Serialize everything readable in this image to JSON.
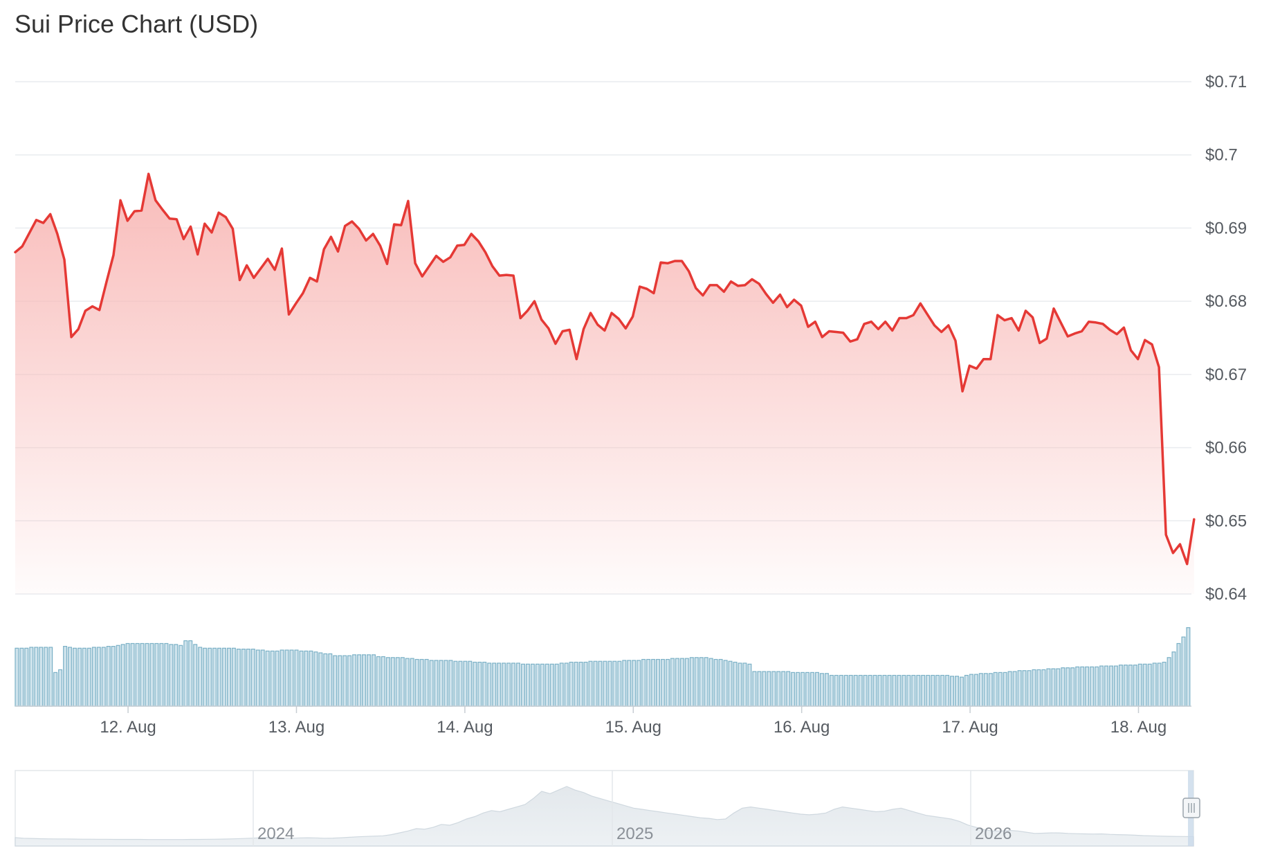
{
  "title": "Sui Price Chart (USD)",
  "colors": {
    "price_line": "#e53935",
    "area_fill": "#f8b8b6",
    "volume_bar_fill": "#cfe3ec",
    "volume_bar_stroke": "#7ab0c6",
    "grid": "#e9ecef",
    "axis_text": "#555a60",
    "navigator_fill": "#e6ebef",
    "navigator_line": "#cfd8df"
  },
  "chart_data": {
    "type": "line",
    "title": "Sui Price Chart (USD)",
    "xlabel": "",
    "ylabel": "",
    "x_tick_labels": [
      "12. Aug",
      "13. Aug",
      "14. Aug",
      "15. Aug",
      "16. Aug",
      "17. Aug",
      "18. Aug"
    ],
    "y_tick_labels": [
      "$0.71",
      "$0.7",
      "$0.69",
      "$0.68",
      "$0.67",
      "$0.66",
      "$0.65",
      "$0.64"
    ],
    "ylim": [
      0.64,
      0.71
    ],
    "xlim_days": [
      0.0,
      7.0
    ],
    "grid": true,
    "legend": "none",
    "series": [
      {
        "values": [
          0.6867,
          0.6875,
          0.6893,
          0.6911,
          0.6907,
          0.6919,
          0.6892,
          0.6857,
          0.6751,
          0.6762,
          0.6787,
          0.6793,
          0.6788,
          0.6826,
          0.6863,
          0.6938,
          0.691,
          0.6923,
          0.6924,
          0.6974,
          0.6938,
          0.6925,
          0.6913,
          0.6912,
          0.6885,
          0.6902,
          0.6864,
          0.6906,
          0.6894,
          0.6921,
          0.6915,
          0.6899,
          0.6829,
          0.6849,
          0.6832,
          0.6845,
          0.6858,
          0.6843,
          0.6872,
          0.6782,
          0.6797,
          0.6811,
          0.6832,
          0.6827,
          0.6871,
          0.6888,
          0.6868,
          0.6903,
          0.6909,
          0.6899,
          0.6883,
          0.6892,
          0.6876,
          0.6851,
          0.6905,
          0.6904,
          0.6937,
          0.6852,
          0.6834,
          0.6848,
          0.6862,
          0.6854,
          0.686,
          0.6876,
          0.6877,
          0.6892,
          0.6882,
          0.6867,
          0.6848,
          0.6835,
          0.6836,
          0.6835,
          0.6777,
          0.6787,
          0.68,
          0.6775,
          0.6763,
          0.6742,
          0.6759,
          0.6761,
          0.6721,
          0.6762,
          0.6784,
          0.6768,
          0.676,
          0.6784,
          0.6776,
          0.6763,
          0.6779,
          0.682,
          0.6817,
          0.6811,
          0.6853,
          0.6852,
          0.6855,
          0.6855,
          0.6841,
          0.6818,
          0.6808,
          0.6822,
          0.6822,
          0.6813,
          0.6827,
          0.6821,
          0.6822,
          0.683,
          0.6824,
          0.681,
          0.6798,
          0.6809,
          0.6792,
          0.6802,
          0.6794,
          0.6765,
          0.6772,
          0.6751,
          0.6759,
          0.6758,
          0.6757,
          0.6745,
          0.6748,
          0.6769,
          0.6772,
          0.6762,
          0.6772,
          0.676,
          0.6777,
          0.6777,
          0.6781,
          0.6797,
          0.6782,
          0.6767,
          0.6758,
          0.6767,
          0.6746,
          0.6677,
          0.6712,
          0.6708,
          0.6721,
          0.6721,
          0.6781,
          0.6774,
          0.6777,
          0.676,
          0.6787,
          0.6778,
          0.6743,
          0.6749,
          0.679,
          0.6771,
          0.6752,
          0.6756,
          0.6759,
          0.6772,
          0.6771,
          0.6769,
          0.6761,
          0.6755,
          0.6764,
          0.6733,
          0.6721,
          0.6747,
          0.6741,
          0.671,
          0.6481,
          0.6456,
          0.6468,
          0.6441,
          0.6502
        ],
        "x_start_day": 0.0,
        "x_step_days": 0.0416667
      }
    ],
    "volume": [
      62,
      62,
      62,
      63,
      63,
      63,
      63,
      63,
      36,
      39,
      64,
      63,
      62,
      62,
      62,
      62,
      63,
      63,
      63,
      64,
      64,
      65,
      66,
      67,
      67,
      67,
      67,
      67,
      67,
      67,
      67,
      67,
      66,
      66,
      65,
      70,
      70,
      66,
      63,
      62,
      62,
      62,
      62,
      62,
      62,
      62,
      61,
      61,
      61,
      61,
      60,
      60,
      59,
      59,
      59,
      60,
      60,
      60,
      60,
      59,
      59,
      59,
      58,
      57,
      56,
      56,
      54,
      54,
      54,
      54,
      55,
      55,
      55,
      55,
      55,
      53,
      53,
      52,
      52,
      52,
      52,
      51,
      51,
      50,
      50,
      50,
      49,
      49,
      49,
      49,
      49,
      48,
      48,
      48,
      48,
      47,
      47,
      47,
      46,
      46,
      46,
      46,
      46,
      46,
      46,
      45,
      45,
      45,
      45,
      45,
      45,
      45,
      45,
      46,
      46,
      47,
      47,
      47,
      47,
      48,
      48,
      48,
      48,
      48,
      48,
      48,
      49,
      49,
      49,
      49,
      50,
      50,
      50,
      50,
      50,
      50,
      51,
      51,
      51,
      51,
      52,
      52,
      52,
      52,
      51,
      50,
      50,
      49,
      48,
      47,
      46,
      46,
      45,
      37,
      37,
      37,
      37,
      37,
      37,
      37,
      37,
      36,
      36,
      36,
      36,
      36,
      36,
      35,
      35,
      33,
      33,
      33,
      33,
      33,
      33,
      33,
      33,
      33,
      33,
      33,
      33,
      33,
      33,
      33,
      33,
      33,
      33,
      33,
      33,
      33,
      33,
      33,
      33,
      33,
      32,
      32,
      31,
      33,
      34,
      34,
      35,
      35,
      35,
      36,
      36,
      36,
      37,
      37,
      38,
      38,
      38,
      39,
      39,
      39,
      40,
      40,
      40,
      41,
      41,
      41,
      42,
      42,
      42,
      42,
      42,
      43,
      43,
      43,
      43,
      44,
      44,
      44,
      44,
      45,
      45,
      45,
      46,
      46,
      47,
      52,
      58,
      67,
      74,
      84
    ],
    "navigator": {
      "x_labels": [
        "2024",
        "2025",
        "2026"
      ],
      "series_values": [
        0.35,
        0.3,
        0.28,
        0.26,
        0.25,
        0.24,
        0.24,
        0.23,
        0.22,
        0.22,
        0.21,
        0.21,
        0.2,
        0.2,
        0.2,
        0.2,
        0.19,
        0.19,
        0.19,
        0.19,
        0.19,
        0.2,
        0.2,
        0.21,
        0.22,
        0.23,
        0.25,
        0.27,
        0.3,
        0.33,
        0.36,
        0.34,
        0.31,
        0.3,
        0.32,
        0.34,
        0.33,
        0.3,
        0.31,
        0.34,
        0.38,
        0.42,
        0.45,
        0.48,
        0.5,
        0.6,
        0.75,
        0.9,
        1.1,
        1.05,
        1.2,
        1.45,
        1.38,
        1.6,
        1.9,
        2.1,
        2.4,
        2.6,
        2.5,
        2.7,
        2.9,
        3.1,
        3.6,
        4.2,
        4.0,
        4.3,
        4.6,
        4.3,
        4.1,
        3.8,
        3.6,
        3.4,
        3.2,
        3.0,
        2.8,
        2.7,
        2.6,
        2.5,
        2.4,
        2.3,
        2.2,
        2.1,
        2.0,
        1.95,
        1.85,
        1.9,
        2.4,
        2.8,
        2.9,
        2.8,
        2.7,
        2.6,
        2.5,
        2.4,
        2.3,
        2.25,
        2.3,
        2.4,
        2.7,
        2.9,
        2.8,
        2.7,
        2.6,
        2.5,
        2.55,
        2.7,
        2.8,
        2.6,
        2.4,
        2.2,
        2.1,
        2.0,
        1.9,
        1.7,
        1.4,
        1.2,
        1.0,
        0.9,
        0.9,
        0.95,
        0.9,
        0.8,
        0.7,
        0.72,
        0.75,
        0.74,
        0.7,
        0.68,
        0.66,
        0.65,
        0.66,
        0.62,
        0.6,
        0.58,
        0.55,
        0.52,
        0.5,
        0.48,
        0.46,
        0.45,
        0.44,
        0.43
      ]
    }
  }
}
